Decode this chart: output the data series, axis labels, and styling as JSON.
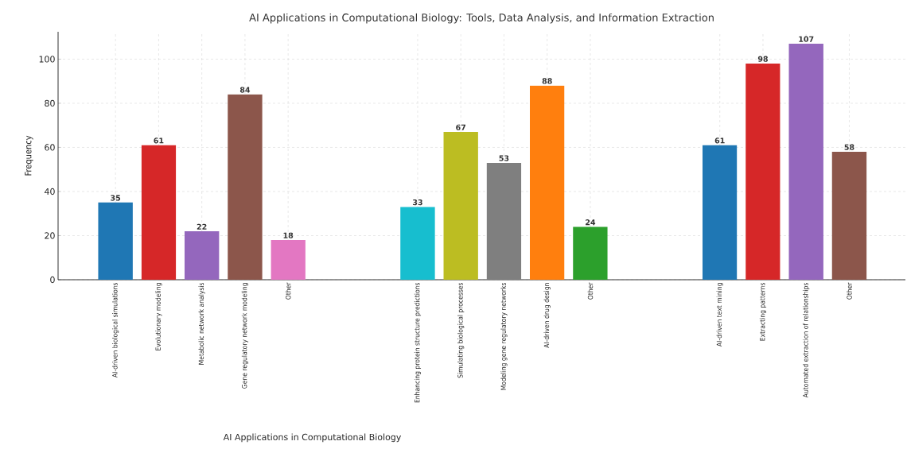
{
  "chart_data": {
    "type": "bar",
    "title": "AI Applications in Computational Biology: Tools, Data Analysis, and Information Extraction",
    "xlabel": "AI Applications in Computational Biology",
    "ylabel": "Frequency",
    "categories": [
      "AI-driven biological simulations",
      "Evolutionary modeling",
      "Metabolic network analysis",
      "Gene regulatory network modeling",
      "Other",
      null,
      null,
      "Enhancing protein structure predictions",
      "Simulating biological processes",
      "Modeling gene regulatory networks",
      "AI-driven drug design",
      "Other",
      null,
      null,
      "AI-driven text mining",
      "Extracting patterns",
      "Automated extraction of relationships",
      "Other"
    ],
    "values": [
      35,
      61,
      22,
      84,
      18,
      null,
      null,
      33,
      67,
      53,
      88,
      24,
      null,
      null,
      61,
      98,
      107,
      58
    ],
    "colors": [
      "#1f77b4",
      "#d62728",
      "#9467bd",
      "#8c564b",
      "#e377c2",
      null,
      null,
      "#17becf",
      "#bcbd22",
      "#7f7f7f",
      "#ff7f0e",
      "#2ca02c",
      null,
      null,
      "#1f77b4",
      "#d62728",
      "#9467bd",
      "#8c564b"
    ],
    "ylim": [
      0,
      112.4
    ],
    "yticks": [
      0,
      20,
      40,
      60,
      80,
      100
    ],
    "grid": true,
    "data_labels": true
  }
}
